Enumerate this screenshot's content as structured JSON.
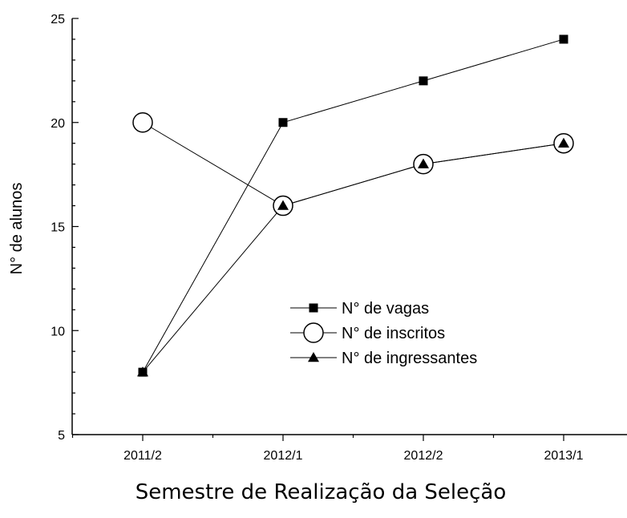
{
  "chart_data": {
    "type": "line",
    "xlabel": "Semestre de Realização da Seleção",
    "ylabel": "N° de alunos",
    "categories": [
      "2011/2",
      "2012/1",
      "2012/2",
      "2013/1"
    ],
    "ylim": [
      5,
      25
    ],
    "yticks": [
      5,
      10,
      15,
      20,
      25
    ],
    "grid": false,
    "legend_position": "center-right",
    "series": [
      {
        "name": "N° de vagas",
        "marker": "square-filled",
        "values": [
          8,
          20,
          22,
          24
        ]
      },
      {
        "name": "N° de inscritos",
        "marker": "circle-open",
        "values": [
          20,
          16,
          18,
          19
        ]
      },
      {
        "name": "N° de ingressantes",
        "marker": "triangle-filled",
        "values": [
          8,
          16,
          18,
          19
        ]
      }
    ]
  }
}
